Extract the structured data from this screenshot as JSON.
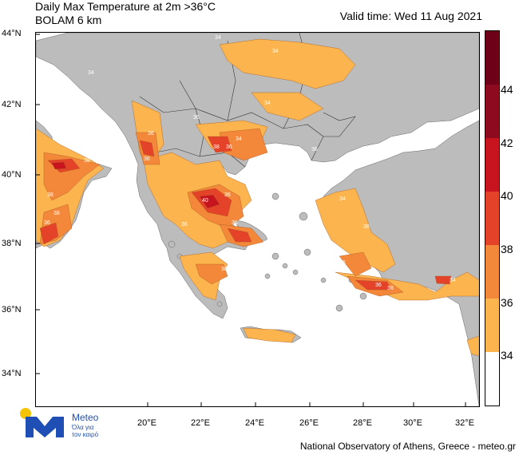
{
  "title": {
    "line1": "Daily Max Temperature at 2m >36°C",
    "line2": "BOLAM 6 km"
  },
  "valid_time": "Valid time: Wed 11 Aug 2021",
  "latitude_labels": [
    "44°N",
    "42°N",
    "40°N",
    "38°N",
    "36°N",
    "34°N"
  ],
  "longitude_labels": [
    "20°E",
    "22°E",
    "24°E",
    "26°E",
    "28°E",
    "30°E",
    "32°E"
  ],
  "legend": {
    "levels": [
      "34",
      "36",
      "38",
      "40",
      "42",
      "44"
    ],
    "colors": [
      "#ffffff",
      "#fcb54e",
      "#f4883a",
      "#e4432a",
      "#c8141e",
      "#8e0a1e",
      "#6e0018"
    ]
  },
  "colors": {
    "land": "#bcbcbc",
    "sea": "#ffffff",
    "temp_34": "#fcb54e",
    "temp_36": "#f4883a",
    "temp_38": "#e4432a",
    "temp_40": "#c8141e"
  },
  "contour_labels": [
    "34",
    "36",
    "38",
    "40"
  ],
  "logo": {
    "name": "Meteo",
    "tagline_1": "Όλα για",
    "tagline_2": "τον καιρό"
  },
  "footer": "National Observatory of Athens, Greece - meteo.gr"
}
